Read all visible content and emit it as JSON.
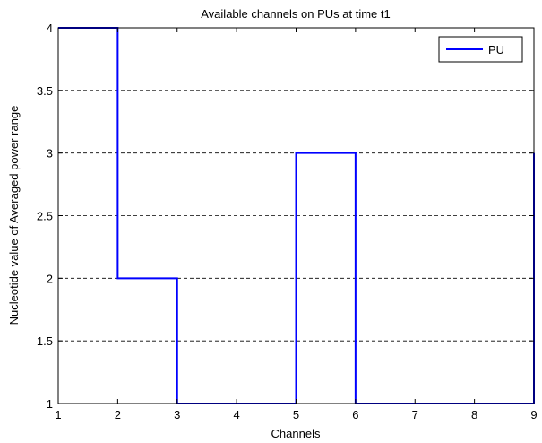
{
  "chart_data": {
    "type": "line",
    "step": "post",
    "title": "Available channels on PUs at time t1",
    "xlabel": "Channels",
    "ylabel": "Nucleotide value of Averaged power range",
    "xlim": [
      1,
      9
    ],
    "ylim": [
      1,
      4
    ],
    "xticks": [
      "1",
      "2",
      "3",
      "4",
      "5",
      "6",
      "7",
      "8",
      "9"
    ],
    "yticks": [
      "1",
      "1.5",
      "2",
      "2.5",
      "3",
      "3.5",
      "4"
    ],
    "grid": "horizontal-dashed",
    "legend_position": "top-right",
    "series": [
      {
        "name": "PU",
        "color": "#0000ff",
        "x": [
          1,
          2,
          3,
          4,
          5,
          6,
          7,
          8,
          9
        ],
        "y": [
          4,
          2,
          1,
          1,
          3,
          1,
          1,
          1,
          3
        ]
      }
    ]
  }
}
